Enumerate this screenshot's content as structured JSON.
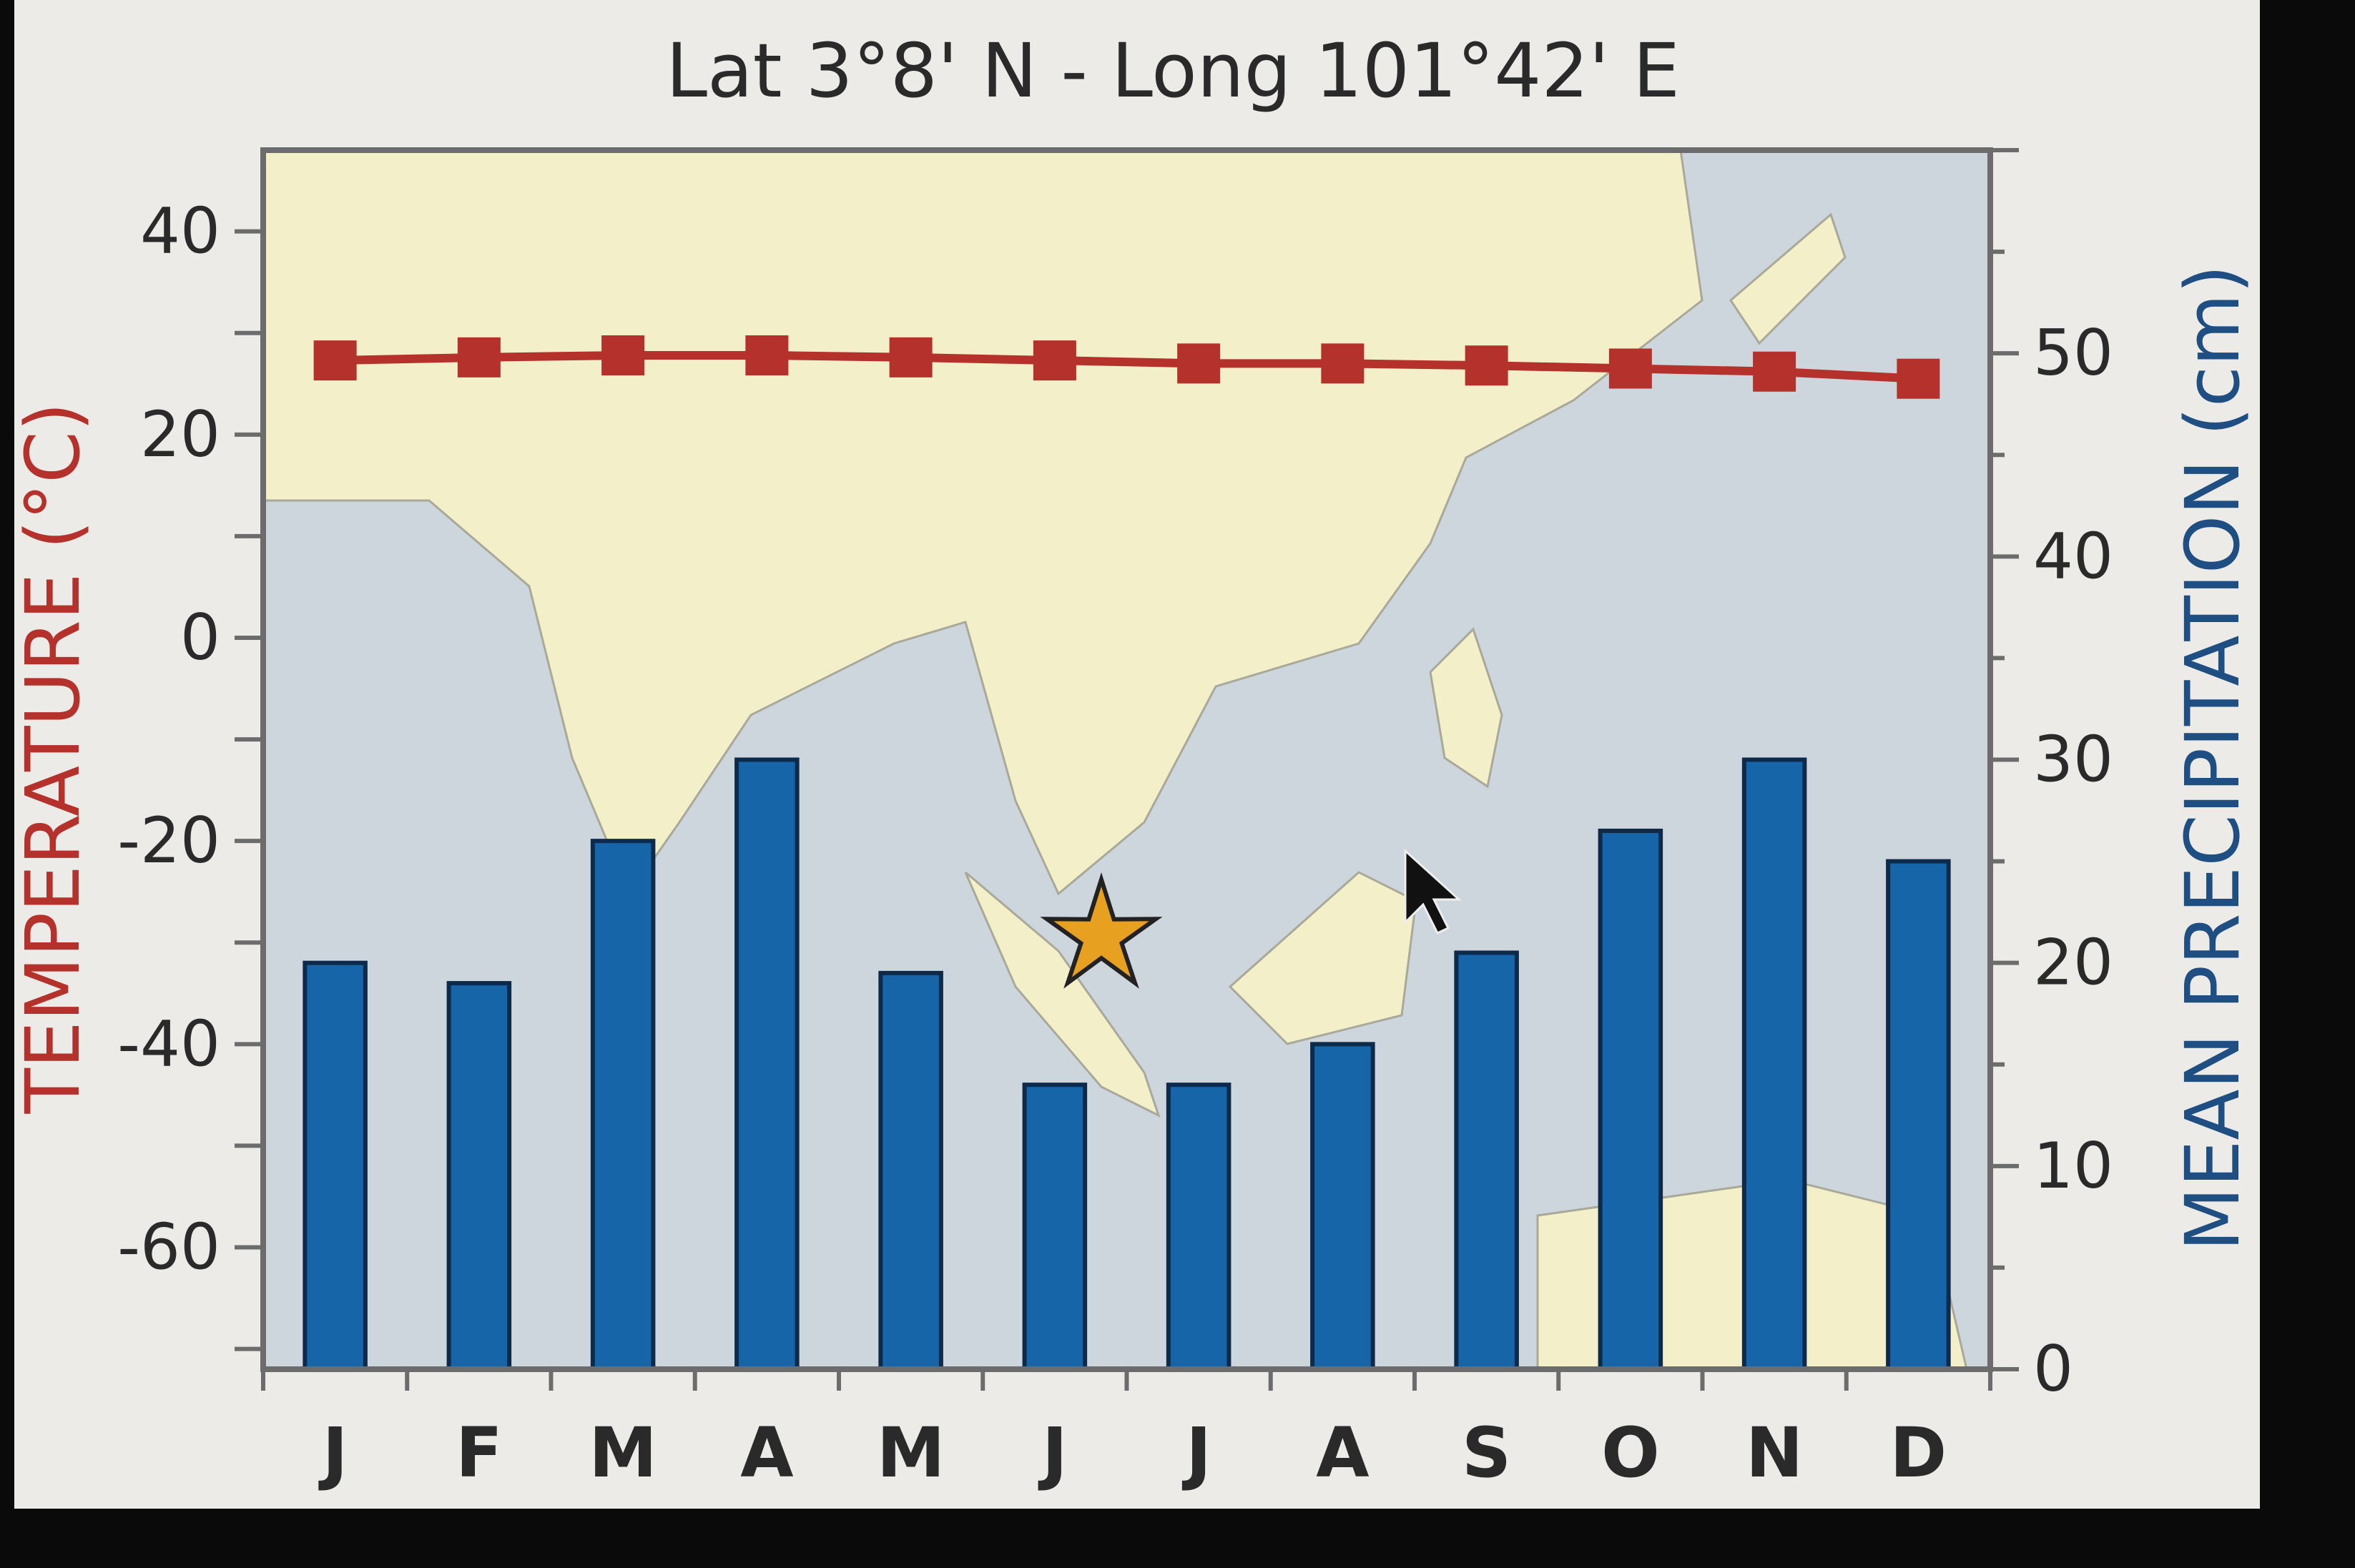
{
  "chart_data": {
    "type": "bar+line",
    "title": "Lat 3°8' N - Long 101°42' E",
    "categories": [
      "J",
      "F",
      "M",
      "A",
      "M",
      "J",
      "J",
      "A",
      "S",
      "O",
      "N",
      "D"
    ],
    "series": [
      {
        "name": "MEAN PRECIPITATION (cm)",
        "type": "bar",
        "axis": "right",
        "color": "#1565a8",
        "values": [
          20,
          19,
          26,
          30,
          19.5,
          14,
          14,
          16,
          20.5,
          26.5,
          30,
          25
        ]
      },
      {
        "name": "TEMPERATURE (°C)",
        "type": "line",
        "axis": "left",
        "color": "#b5312c",
        "values": [
          27.3,
          27.6,
          27.8,
          27.8,
          27.6,
          27.3,
          27.0,
          27.0,
          26.8,
          26.5,
          26.2,
          25.5
        ]
      }
    ],
    "ylabel_left": "TEMPERATURE (°C)",
    "ylabel_right": "MEAN PRECIPITATION (cm)",
    "ylim_left": [
      -72,
      48
    ],
    "ylim_right": [
      0,
      60
    ],
    "yticks_left": [
      40,
      20,
      0,
      -20,
      -40,
      -60
    ],
    "yticks_right": [
      50,
      40,
      30,
      20,
      10,
      0
    ],
    "left_axis_color": "#b5312c",
    "right_axis_color": "#1f4f82",
    "background": "map of South and Southeast Asia with a star marking the location",
    "marker": "star",
    "marker_color": "#e8a020",
    "grid": false
  }
}
